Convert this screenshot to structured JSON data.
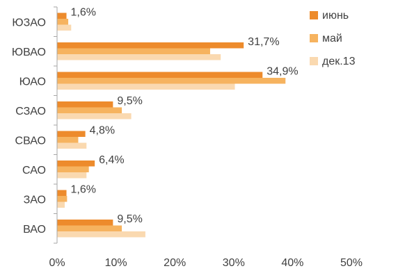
{
  "chart_data": {
    "type": "bar",
    "orientation": "horizontal",
    "categories": [
      "ЮЗАО",
      "ЮВАО",
      "ЮАО",
      "СЗАО",
      "СВАО",
      "САО",
      "ЗАО",
      "ВАО"
    ],
    "series": [
      {
        "name": "июнь",
        "color": "#ED8B2C",
        "values": [
          1.6,
          31.7,
          34.9,
          9.5,
          4.8,
          6.4,
          1.6,
          9.5
        ],
        "labels": [
          "1,6%",
          "31,7%",
          "34,9%",
          "9,5%",
          "4,8%",
          "6,4%",
          "1,6%",
          "9,5%"
        ]
      },
      {
        "name": "май",
        "color": "#F6B35F",
        "values": [
          1.9,
          26.0,
          38.8,
          11.0,
          3.6,
          5.4,
          1.7,
          11.0
        ]
      },
      {
        "name": "дек.13",
        "color": "#FAD9B0",
        "values": [
          2.4,
          27.8,
          30.2,
          12.6,
          5.0,
          5.0,
          1.3,
          15.0
        ]
      }
    ],
    "xlim": [
      0,
      50
    ],
    "xticks": [
      0,
      10,
      20,
      30,
      40,
      50
    ],
    "xtick_labels": [
      "0%",
      "10%",
      "20%",
      "30%",
      "40%",
      "50%"
    ],
    "legend_position": "top-right",
    "grid": false
  }
}
